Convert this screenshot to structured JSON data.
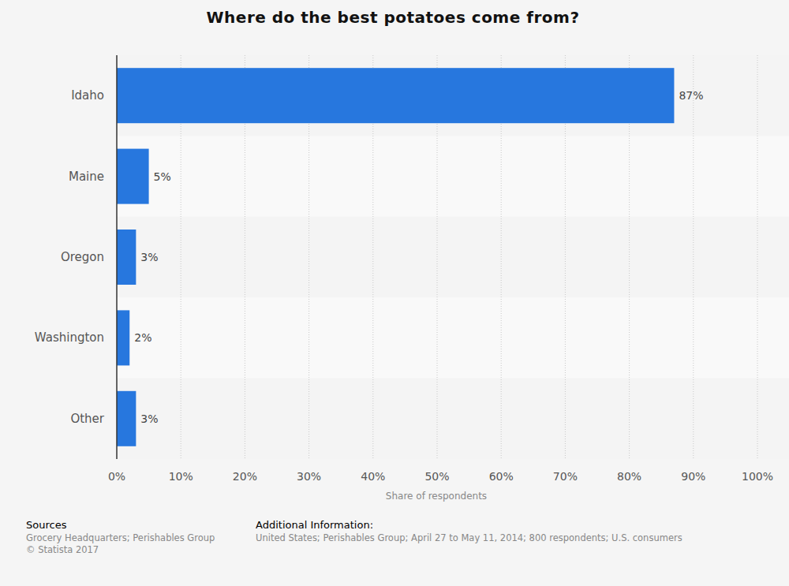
{
  "chart_data": {
    "type": "bar",
    "orientation": "horizontal",
    "title": "Where do the best potatoes come from?",
    "categories": [
      "Idaho",
      "Maine",
      "Oregon",
      "Washington",
      "Other"
    ],
    "values": [
      87,
      5,
      3,
      2,
      3
    ],
    "value_labels": [
      "87%",
      "5%",
      "3%",
      "2%",
      "3%"
    ],
    "data_labels": true,
    "color": "#2777de",
    "x_label": "Share of respondents",
    "xlim": [
      0,
      100
    ],
    "xticks": [
      {
        "value": 0,
        "label": "0%"
      },
      {
        "value": 10,
        "label": "10%"
      },
      {
        "value": 20,
        "label": "20%"
      },
      {
        "value": 30,
        "label": "30%"
      },
      {
        "value": 40,
        "label": "40%"
      },
      {
        "value": 50,
        "label": "50%"
      },
      {
        "value": 60,
        "label": "60%"
      },
      {
        "value": 70,
        "label": "70%"
      },
      {
        "value": 80,
        "label": "80%"
      },
      {
        "value": 90,
        "label": "90%"
      },
      {
        "value": 100,
        "label": "100%"
      }
    ],
    "grid": true,
    "sources_label": "Sources",
    "sources": [
      "Grocery Headquarters; Perishables Group",
      "© Statista 2017"
    ],
    "info_label": "Additional Information:",
    "info": "United States; Perishables Group; April 27 to May 11, 2014; 800 respondents; U.S. consumers"
  }
}
